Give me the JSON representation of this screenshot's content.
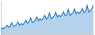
{
  "chart_data": {
    "type": "area",
    "categories": [
      null,
      null,
      null,
      null,
      null,
      null,
      null,
      null,
      null,
      null,
      null,
      null,
      null,
      null,
      null,
      null,
      null,
      null,
      null,
      null,
      null,
      null,
      null,
      null,
      null,
      null,
      null,
      null,
      null,
      null,
      null,
      null,
      null,
      null,
      null,
      null,
      null,
      null,
      null,
      null,
      null,
      null,
      null,
      null,
      null,
      null,
      null,
      null,
      null,
      null,
      null,
      null,
      null,
      null,
      null,
      null,
      null,
      null,
      null,
      null
    ],
    "values": [
      12,
      15,
      14,
      18,
      22,
      17,
      20,
      28,
      19,
      21,
      24,
      30,
      22,
      26,
      23,
      28,
      34,
      27,
      30,
      40,
      29,
      31,
      35,
      42,
      33,
      38,
      34,
      40,
      46,
      37,
      40,
      52,
      38,
      41,
      45,
      54,
      42,
      47,
      43,
      48,
      55,
      45,
      48,
      60,
      46,
      49,
      53,
      62,
      50,
      55,
      51,
      56,
      63,
      53,
      56,
      70,
      54,
      58,
      62,
      72
    ],
    "color": "#2a7fc9",
    "ylim": [
      0,
      80
    ],
    "grid": false,
    "tick_labels": false
  }
}
